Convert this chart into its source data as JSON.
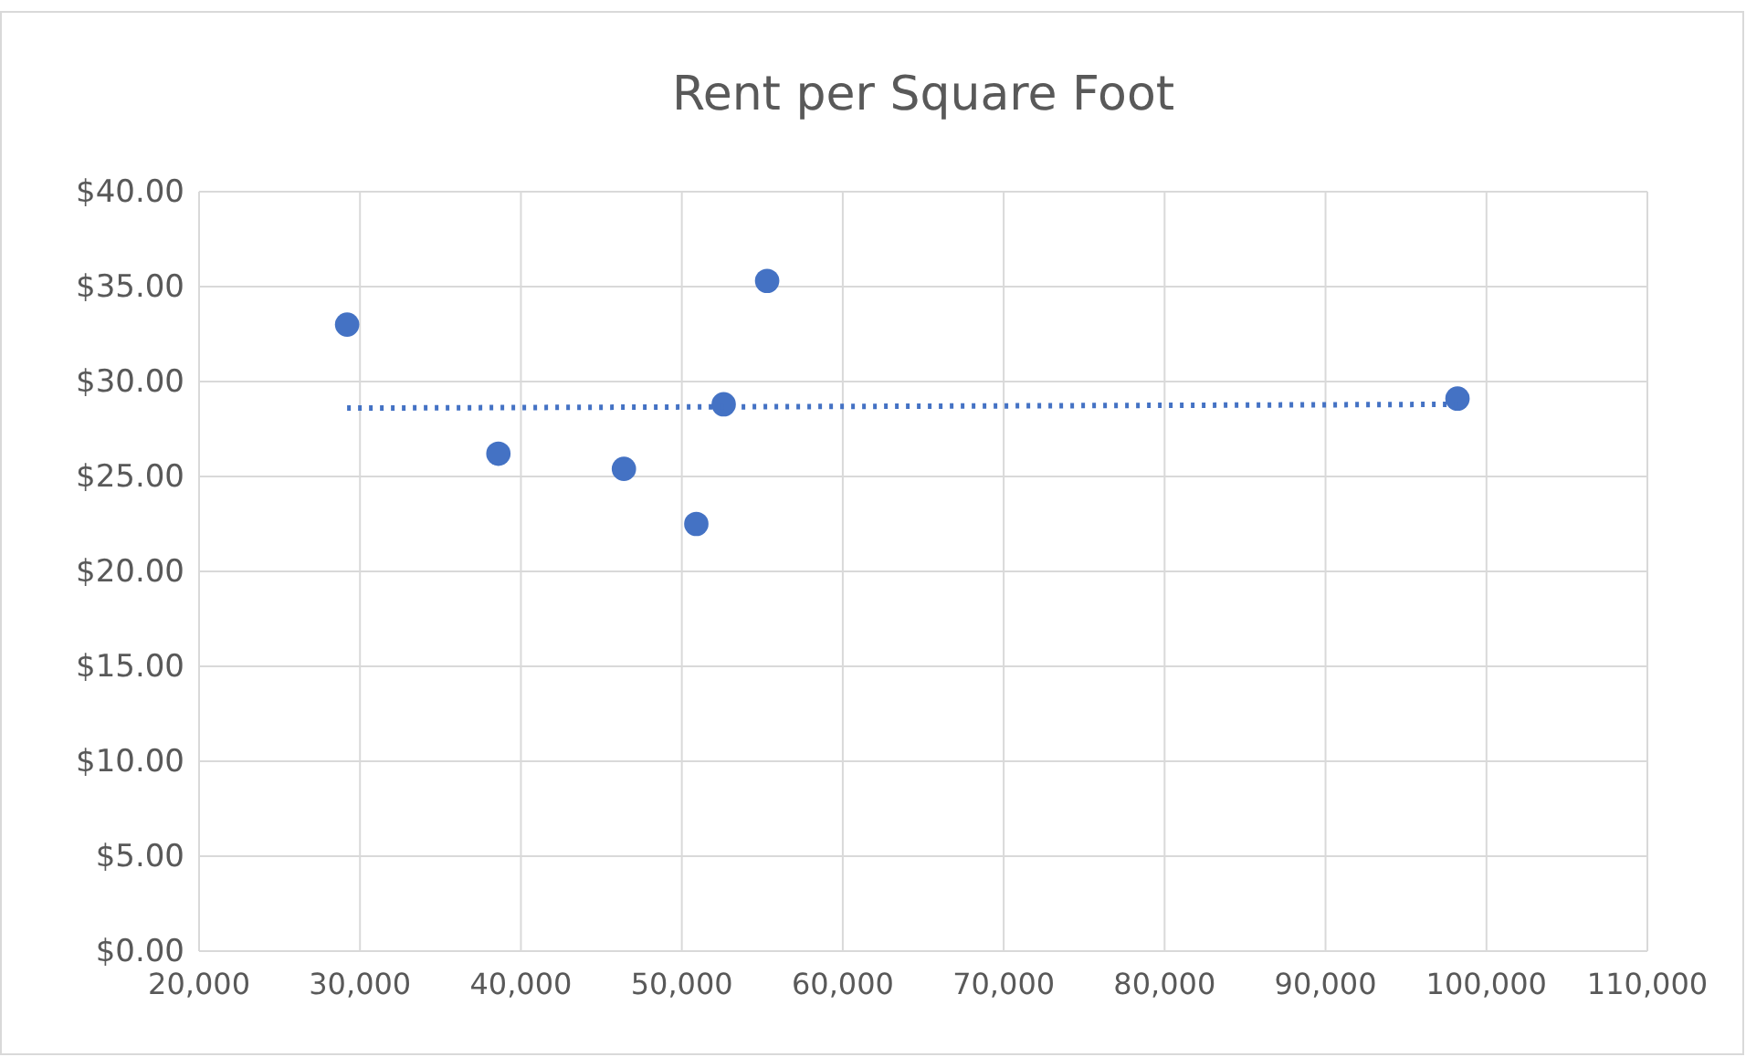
{
  "chart_data": {
    "type": "scatter",
    "title": "Rent per Square Foot",
    "x": [
      29200,
      38600,
      46400,
      50900,
      52600,
      55300,
      98200
    ],
    "series": [
      {
        "color": "#4472c4",
        "marker": "circle",
        "values": [
          33.0,
          26.2,
          25.4,
          22.5,
          28.8,
          35.3,
          29.1
        ]
      },
      {
        "type": "line",
        "color": "#4472c4",
        "line_style": "dotted",
        "marker": "none",
        "x": [
          29200,
          98200
        ],
        "values": [
          28.6,
          28.8
        ]
      }
    ],
    "xlim": [
      20000,
      110000
    ],
    "xticks": [
      {
        "value": 20000,
        "label": "20,000"
      },
      {
        "value": 30000,
        "label": "30,000"
      },
      {
        "value": 40000,
        "label": "40,000"
      },
      {
        "value": 50000,
        "label": "50,000"
      },
      {
        "value": 60000,
        "label": "60,000"
      },
      {
        "value": 70000,
        "label": "70,000"
      },
      {
        "value": 80000,
        "label": "80,000"
      },
      {
        "value": 90000,
        "label": "90,000"
      },
      {
        "value": 100000,
        "label": "100,000"
      },
      {
        "value": 110000,
        "label": "110,000"
      }
    ],
    "ylim": [
      0,
      40
    ],
    "yticks": [
      {
        "value": 0,
        "label": "$0.00"
      },
      {
        "value": 5,
        "label": "$5.00"
      },
      {
        "value": 10,
        "label": "$10.00"
      },
      {
        "value": 15,
        "label": "$15.00"
      },
      {
        "value": 20,
        "label": "$20.00"
      },
      {
        "value": 25,
        "label": "$25.00"
      },
      {
        "value": 30,
        "label": "$30.00"
      },
      {
        "value": 35,
        "label": "$35.00"
      },
      {
        "value": 40,
        "label": "$40.00"
      }
    ],
    "grid": true
  }
}
